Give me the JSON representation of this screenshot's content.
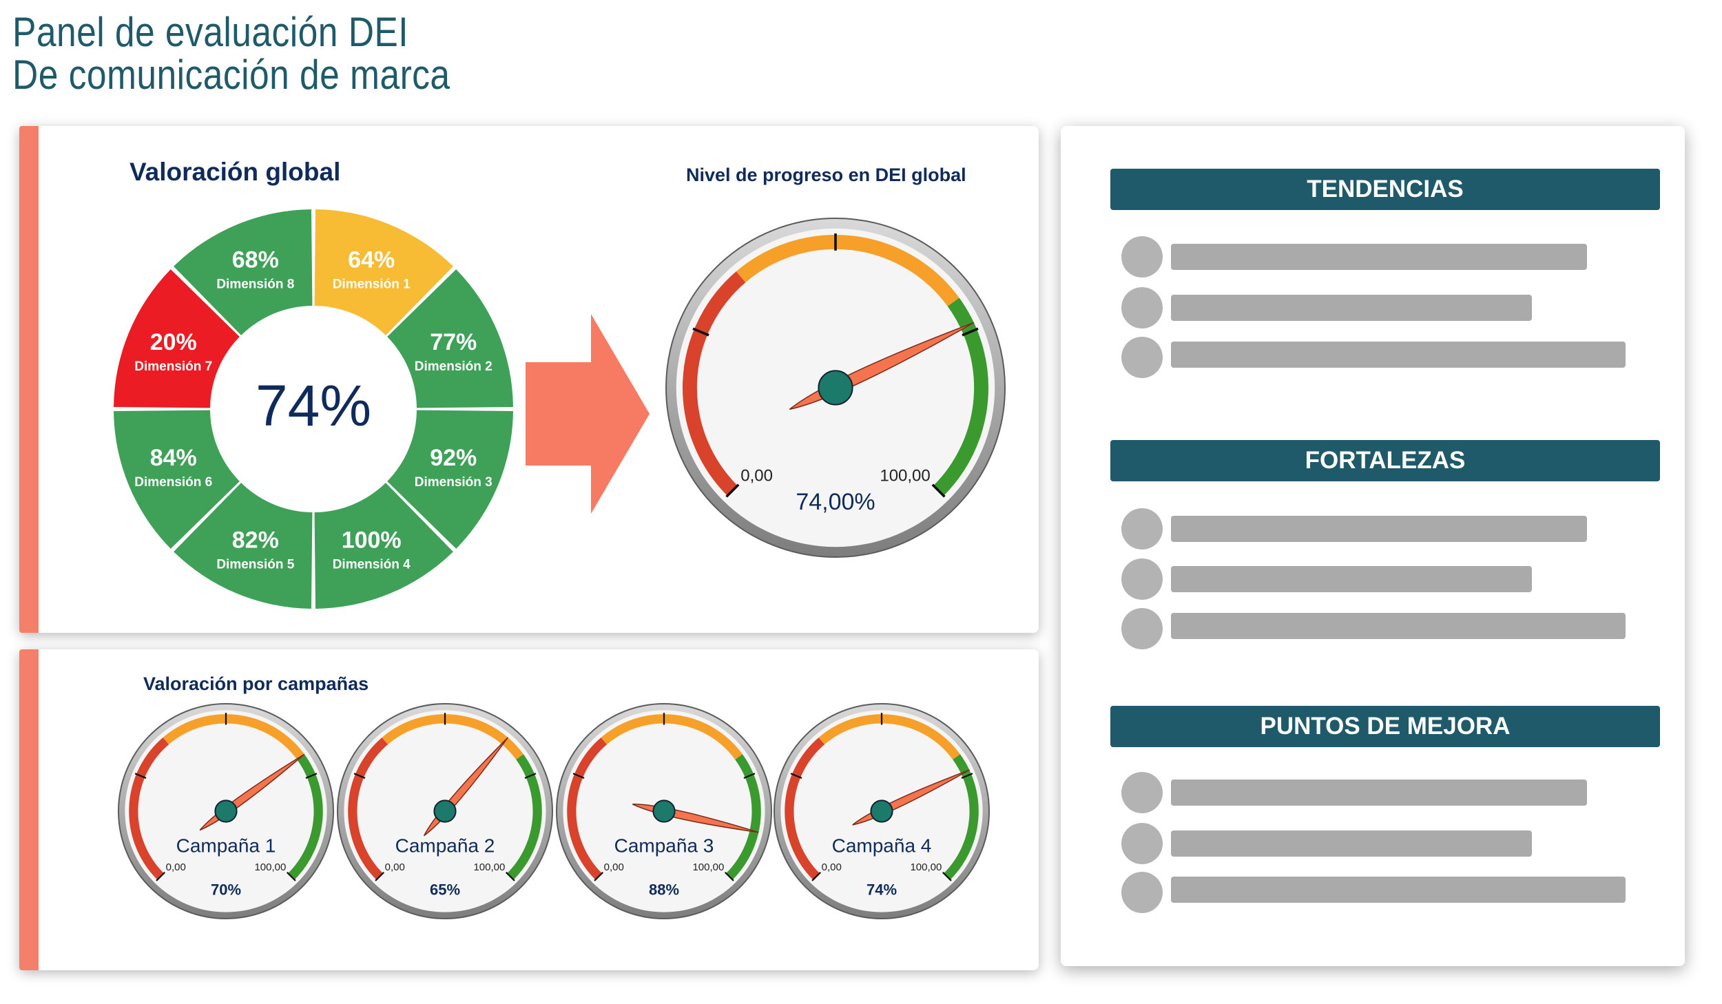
{
  "header": {
    "title_line1": "Panel de evaluación DEI",
    "title_line2": "De comunicación de marca"
  },
  "global": {
    "title": "Valoración global",
    "center_value": "74%",
    "dimensions": [
      {
        "name": "Dimensión 1",
        "value": "64%",
        "color": "#f8bb34"
      },
      {
        "name": "Dimensión 2",
        "value": "77%",
        "color": "#3fa158"
      },
      {
        "name": "Dimensión 3",
        "value": "92%",
        "color": "#3fa158"
      },
      {
        "name": "Dimensión 4",
        "value": "100%",
        "color": "#3fa158"
      },
      {
        "name": "Dimensión 5",
        "value": "82%",
        "color": "#3fa158"
      },
      {
        "name": "Dimensión 6",
        "value": "84%",
        "color": "#3fa158"
      },
      {
        "name": "Dimensión 7",
        "value": "20%",
        "color": "#ec1c24"
      },
      {
        "name": "Dimensión 8",
        "value": "68%",
        "color": "#3fa158"
      }
    ]
  },
  "progress": {
    "title": "Nivel de progreso en DEI global",
    "min_label": "0,00",
    "max_label": "100,00",
    "value_label": "74,00%",
    "value": 74
  },
  "campaigns": {
    "title": "Valoración por campañas",
    "items": [
      {
        "name": "Campaña 1",
        "min_label": "0,00",
        "max_label": "100,00",
        "value_label": "70%",
        "value": 70
      },
      {
        "name": "Campaña 2",
        "min_label": "0,00",
        "max_label": "100,00",
        "value_label": "65%",
        "value": 65
      },
      {
        "name": "Campaña 3",
        "min_label": "0,00",
        "max_label": "100,00",
        "value_label": "88%",
        "value": 88
      },
      {
        "name": "Campaña 4",
        "min_label": "0,00",
        "max_label": "100,00",
        "value_label": "74%",
        "value": 74
      }
    ]
  },
  "sidebar": {
    "sections": [
      {
        "title": "TENDENCIAS"
      },
      {
        "title": "FORTALEZAS"
      },
      {
        "title": "PUNTOS DE MEJORA"
      }
    ]
  },
  "colors": {
    "title": "#1f5a6b",
    "accent": "#f4806a",
    "good": "#3fa158",
    "warning": "#f8bb34",
    "bad": "#ec1c24",
    "needle": "#f4744f",
    "hub": "#1b7a6a"
  }
}
